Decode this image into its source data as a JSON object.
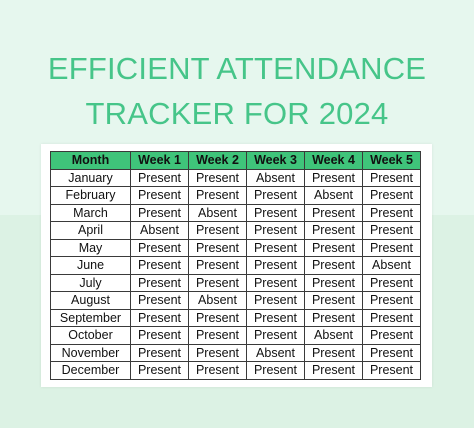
{
  "title": {
    "line1": "EFFICIENT ATTENDANCE",
    "line2": "TRACKER FOR 2024"
  },
  "colors": {
    "background": "#e6f7ee",
    "title": "#46c589",
    "header_fill": "#3fc47a",
    "sheet": "#ffffff"
  },
  "table": {
    "headers": [
      "Month",
      "Week 1",
      "Week 2",
      "Week 3",
      "Week 4",
      "Week 5"
    ],
    "rows": [
      [
        "January",
        "Present",
        "Present",
        "Absent",
        "Present",
        "Present"
      ],
      [
        "February",
        "Present",
        "Present",
        "Present",
        "Absent",
        "Present"
      ],
      [
        "March",
        "Present",
        "Absent",
        "Present",
        "Present",
        "Present"
      ],
      [
        "April",
        "Absent",
        "Present",
        "Present",
        "Present",
        "Present"
      ],
      [
        "May",
        "Present",
        "Present",
        "Present",
        "Present",
        "Present"
      ],
      [
        "June",
        "Present",
        "Present",
        "Present",
        "Present",
        "Absent"
      ],
      [
        "July",
        "Present",
        "Present",
        "Present",
        "Present",
        "Present"
      ],
      [
        "August",
        "Present",
        "Absent",
        "Present",
        "Present",
        "Present"
      ],
      [
        "September",
        "Present",
        "Present",
        "Present",
        "Present",
        "Present"
      ],
      [
        "October",
        "Present",
        "Present",
        "Present",
        "Absent",
        "Present"
      ],
      [
        "November",
        "Present",
        "Present",
        "Absent",
        "Present",
        "Present"
      ],
      [
        "December",
        "Present",
        "Present",
        "Present",
        "Present",
        "Present"
      ]
    ]
  }
}
